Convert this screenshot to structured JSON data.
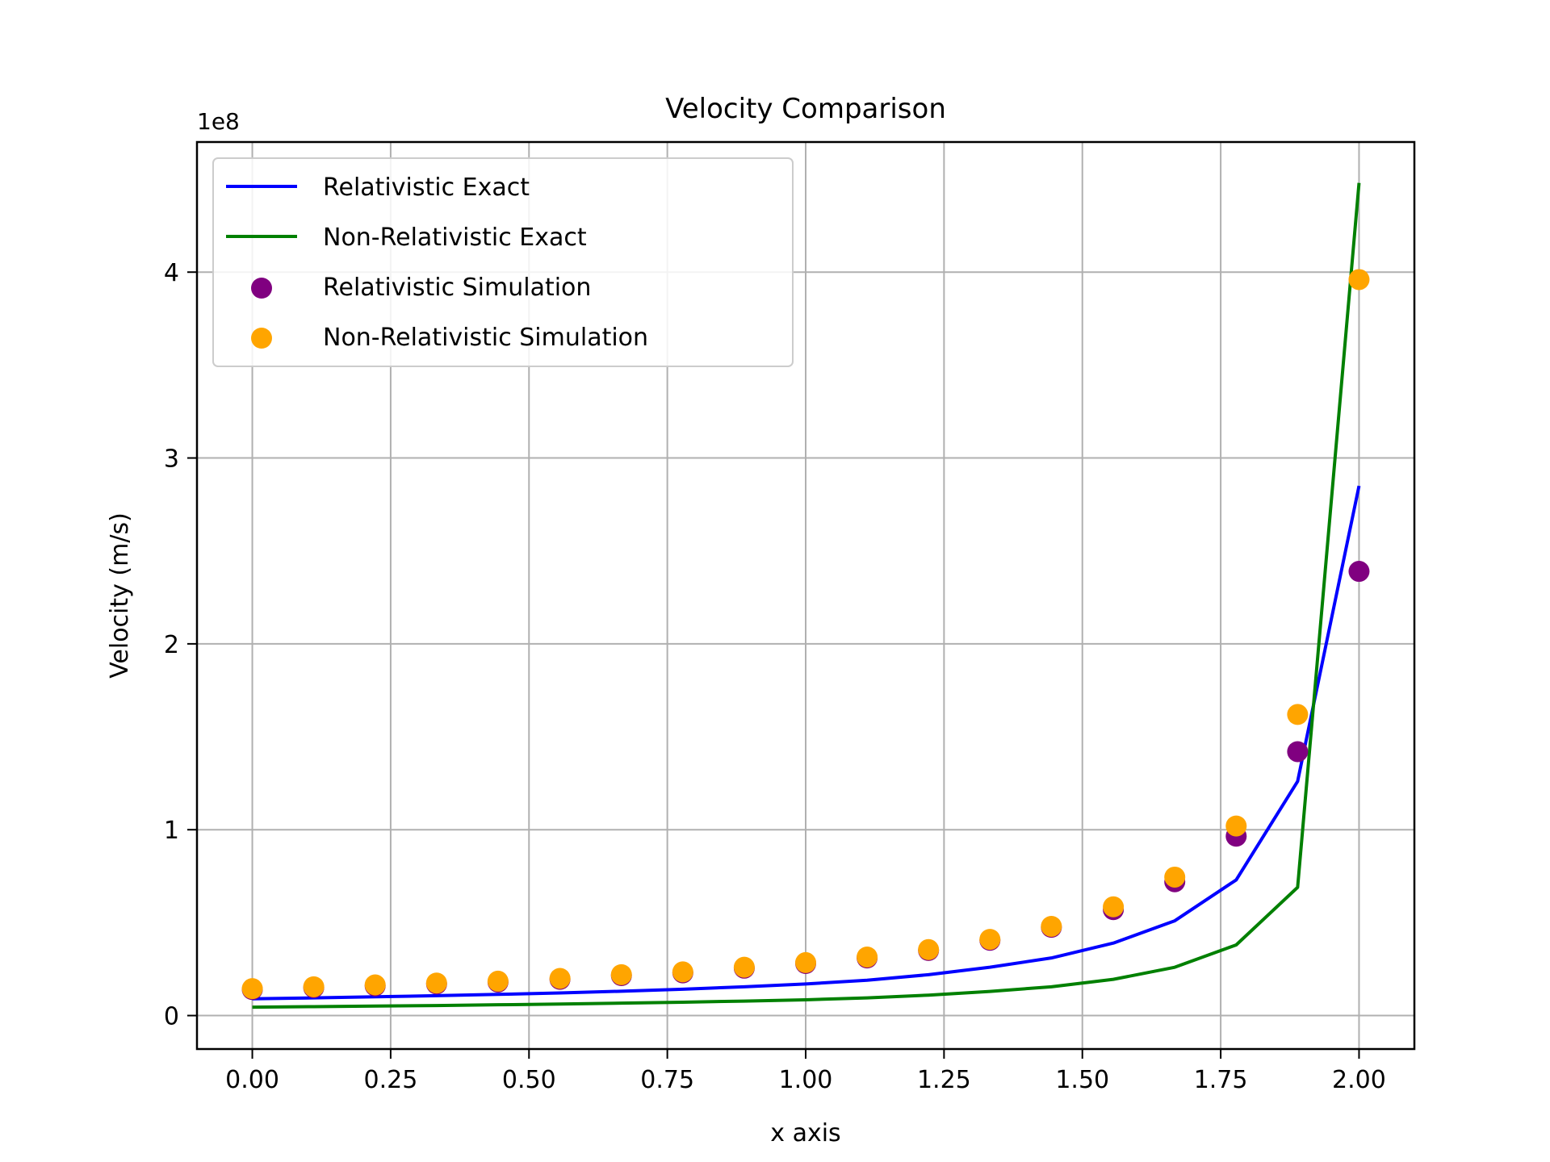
{
  "chart_data": {
    "type": "line",
    "title": "Velocity Comparison",
    "xlabel": "x axis",
    "ylabel": "Velocity (m/s)",
    "y_offset_label": "1e8",
    "xlim": [
      -0.1,
      2.1
    ],
    "ylim": [
      -0.18,
      4.7
    ],
    "x_ticks": [
      0.0,
      0.25,
      0.5,
      0.75,
      1.0,
      1.25,
      1.5,
      1.75,
      2.0
    ],
    "x_tick_labels": [
      "0.00",
      "0.25",
      "0.50",
      "0.75",
      "1.00",
      "1.25",
      "1.50",
      "1.75",
      "2.00"
    ],
    "y_ticks": [
      0,
      1,
      2,
      3,
      4
    ],
    "y_tick_labels": [
      "0",
      "1",
      "2",
      "3",
      "4"
    ],
    "grid": true,
    "legend_position": "top-left",
    "x": [
      0.0,
      0.111,
      0.222,
      0.333,
      0.444,
      0.556,
      0.667,
      0.778,
      0.889,
      1.0,
      1.111,
      1.222,
      1.333,
      1.444,
      1.556,
      1.667,
      1.778,
      1.889,
      2.0
    ],
    "series": [
      {
        "name": "Relativistic Exact",
        "kind": "line",
        "color": "#0000ff",
        "values": [
          0.09,
          0.095,
          0.101,
          0.107,
          0.114,
          0.122,
          0.131,
          0.142,
          0.155,
          0.17,
          0.19,
          0.22,
          0.26,
          0.31,
          0.39,
          0.51,
          0.73,
          1.26,
          2.85
        ]
      },
      {
        "name": "Non-Relativistic Exact",
        "kind": "line",
        "color": "#008000",
        "values": [
          0.045,
          0.048,
          0.051,
          0.054,
          0.058,
          0.062,
          0.067,
          0.072,
          0.078,
          0.085,
          0.095,
          0.11,
          0.13,
          0.155,
          0.195,
          0.26,
          0.38,
          0.69,
          4.48
        ]
      },
      {
        "name": "Relativistic Simulation",
        "kind": "scatter",
        "color": "#800080",
        "values": [
          0.14,
          0.15,
          0.16,
          0.17,
          0.18,
          0.195,
          0.215,
          0.23,
          0.255,
          0.28,
          0.31,
          0.35,
          0.405,
          0.475,
          0.57,
          0.72,
          0.965,
          1.42,
          2.39
        ]
      },
      {
        "name": "Non-Relativistic Simulation",
        "kind": "scatter",
        "color": "#ffa500",
        "values": [
          0.145,
          0.155,
          0.165,
          0.175,
          0.185,
          0.2,
          0.22,
          0.235,
          0.26,
          0.285,
          0.315,
          0.355,
          0.41,
          0.48,
          0.585,
          0.745,
          1.02,
          1.62,
          3.96
        ]
      }
    ]
  }
}
